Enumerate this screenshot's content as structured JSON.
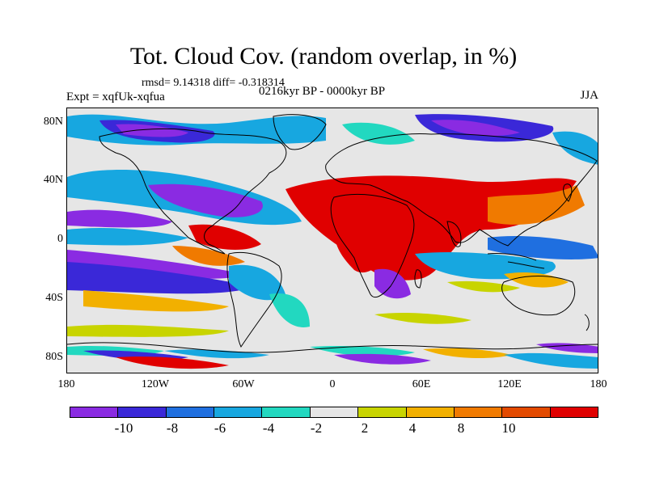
{
  "title": "Tot. Cloud Cov. (random overlap, in %)",
  "stats": "rmsd= 9.14318 diff= -0.318314",
  "experiment": "Expt = xqfUk-xqfua",
  "period": "0216kyr BP - 0000kyr BP",
  "season": "JJA",
  "map": {
    "lat_ticks": [
      "80N",
      "40N",
      "0",
      "40S",
      "80S"
    ],
    "lon_ticks": [
      "180",
      "120W",
      "60W",
      "0",
      "60E",
      "120E",
      "180"
    ]
  },
  "colorbar": {
    "labels": [
      "-10",
      "-8",
      "-6",
      "-4",
      "-2",
      "2",
      "4",
      "8",
      "10"
    ],
    "colors": [
      "#8a2be2",
      "#3a28d8",
      "#1f6fe0",
      "#17a7e0",
      "#22d8c0",
      "#e6e6e6",
      "#c8d400",
      "#f2b000",
      "#f07a00",
      "#e34a00",
      "#e00000"
    ]
  }
}
